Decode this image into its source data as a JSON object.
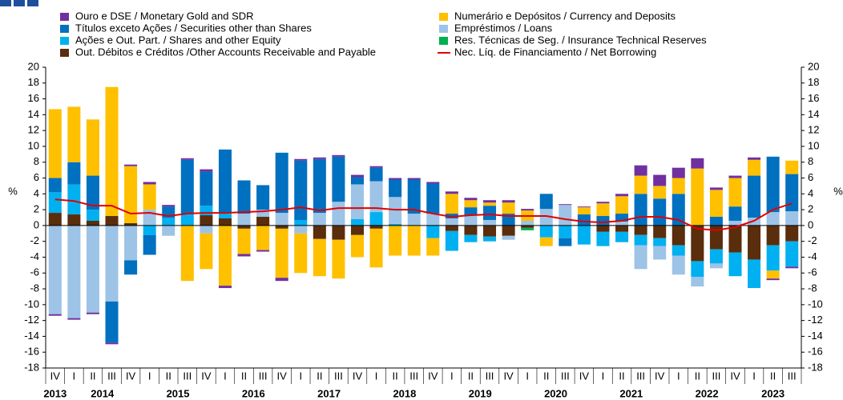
{
  "chart_data": {
    "type": "bar",
    "stacked": true,
    "ylabel": "%",
    "y2label": "%",
    "categories": [
      "IV",
      "I",
      "II",
      "III",
      "IV",
      "I",
      "II",
      "III",
      "IV",
      "I",
      "II",
      "III",
      "IV",
      "I",
      "II",
      "III",
      "IV",
      "I",
      "II",
      "III",
      "IV",
      "I",
      "II",
      "III",
      "IV",
      "I",
      "II",
      "III",
      "IV",
      "I",
      "II",
      "III",
      "IV",
      "I",
      "II",
      "III",
      "IV",
      "I",
      "II",
      "III"
    ],
    "years": [
      "2013",
      "2014",
      "2015",
      "2016",
      "2017",
      "2018",
      "2019",
      "2020",
      "2021",
      "2022",
      "2023"
    ],
    "ylim": [
      -18,
      20
    ],
    "yticks": [
      -18,
      -16,
      -14,
      -12,
      -10,
      -8,
      -6,
      -4,
      -2,
      0,
      2,
      4,
      6,
      8,
      10,
      12,
      14,
      16,
      18,
      20
    ],
    "y2lim": [
      -18,
      20
    ],
    "y2ticks": [
      -18,
      -16,
      -14,
      -12,
      -10,
      -8,
      -6,
      -4,
      -2,
      0,
      2,
      4,
      6,
      8,
      10,
      12,
      14,
      16,
      18,
      20
    ],
    "series": [
      {
        "name": "Ouro e DSE / Monetary Gold and SDR",
        "color": "#7030a0",
        "values": [
          -0.2,
          -0.2,
          -0.2,
          -0.2,
          0.2,
          0.3,
          0.2,
          0.2,
          0.3,
          -0.3,
          -0.3,
          -0.2,
          -0.4,
          0.2,
          0.2,
          0.2,
          0.3,
          0.2,
          0.2,
          0.2,
          0.2,
          0.3,
          0.3,
          0.3,
          0.3,
          0.2,
          0,
          0.1,
          0.1,
          0.2,
          0.3,
          1.3,
          1.4,
          1.3,
          1.3,
          0.3,
          0.3,
          0.3,
          -0.2,
          -0.2
        ]
      },
      {
        "name": "Numerário e Depósitos / Currency and Deposits",
        "color": "#ffc000",
        "values": [
          8.7,
          7,
          7.1,
          16.3,
          7.2,
          3.2,
          0,
          -7,
          -4.5,
          -7.6,
          -3.2,
          -3.1,
          -6.2,
          -5,
          -4.7,
          -4.9,
          -2.8,
          -4.9,
          -3.8,
          -3.8,
          -2.2,
          2.5,
          0.9,
          0.4,
          1.4,
          1.3,
          -1.1,
          0,
          0.9,
          1.6,
          2.2,
          2.3,
          1.6,
          2,
          7.2,
          3.4,
          3.6,
          2,
          -1,
          1.7
        ]
      },
      {
        "name": "Títulos exceto Ações / Securities other than Shares",
        "color": "#0070c0",
        "values": [
          1.8,
          2.8,
          4.3,
          -5.2,
          -1.8,
          -2.5,
          1.4,
          6.8,
          4.3,
          8,
          4.2,
          3.1,
          7.6,
          7.5,
          6.8,
          5.7,
          0.9,
          1.7,
          2.2,
          4.3,
          3.8,
          0.6,
          1,
          1.8,
          1.5,
          0,
          1.9,
          -1,
          1.4,
          1.2,
          1,
          4,
          3.4,
          4,
          0,
          1.1,
          1.8,
          5.3,
          7,
          4.7
        ]
      },
      {
        "name": "Empréstimos / Loans",
        "color": "#9dc3e6",
        "values": [
          -11.2,
          -11.7,
          -11,
          -9.6,
          -4.4,
          2,
          -1.3,
          0,
          -1,
          0,
          1.5,
          0.9,
          1.6,
          -1,
          1.6,
          3,
          4.4,
          3.9,
          3.4,
          1.5,
          1.5,
          0.9,
          1.3,
          0.7,
          -0.5,
          0.6,
          2.1,
          2.6,
          0,
          0,
          0.5,
          -3,
          -1.7,
          -2.4,
          -1.2,
          -0.6,
          0.6,
          1,
          1.7,
          1.8
        ]
      },
      {
        "name": "Ações e Out. Part. / Shares and other Equity",
        "color": "#00b0f0",
        "values": [
          2.6,
          3.8,
          1.4,
          0,
          0,
          -1.2,
          1,
          1.5,
          1.2,
          0.7,
          0,
          0,
          0,
          0.7,
          0,
          0,
          0.8,
          1.7,
          0.2,
          0,
          -1.6,
          -2.5,
          -0.9,
          -0.6,
          0,
          0,
          -1.5,
          -1.6,
          -2.4,
          -1.8,
          -1.3,
          -1.3,
          -1,
          -1.3,
          -2,
          -1.8,
          -3,
          -3.6,
          -3.2,
          -3.2
        ]
      },
      {
        "name": "Res. Técnicas de Seg. / Insurance Technical Reserves",
        "color": "#00b050",
        "values": [
          0,
          0,
          0,
          0,
          0,
          0,
          0,
          0,
          0,
          0,
          0,
          0,
          0,
          0,
          0,
          0,
          0,
          0,
          0,
          0,
          0,
          0,
          0,
          0,
          0,
          -0.3,
          0,
          0,
          0,
          0,
          0,
          0,
          0,
          0,
          0,
          0,
          0,
          0,
          0,
          0
        ]
      },
      {
        "name": "Out. Débitos e Créditos /Other Accounts Receivable and Payable",
        "color": "#5a2d0c",
        "values": [
          1.6,
          1.4,
          0.6,
          1.2,
          0.3,
          0,
          0,
          0,
          1.3,
          0.9,
          -0.4,
          1.1,
          -0.4,
          0,
          -1.7,
          -1.8,
          -1.2,
          -0.4,
          0,
          0,
          0,
          -0.7,
          -1.2,
          -1.4,
          -1.3,
          -0.3,
          0,
          0,
          0,
          -0.8,
          -0.8,
          -1.2,
          -1.6,
          -2.5,
          -4.5,
          -3,
          -3.4,
          -4.3,
          -2.5,
          -2
        ]
      },
      {
        "name": "Nec. Líq. de Financiamento / Net Borrowing",
        "color": "#e00000",
        "kind": "line",
        "values": [
          3.3,
          3.1,
          2.5,
          2.5,
          1.5,
          1.6,
          1.2,
          1.5,
          1.6,
          1.6,
          1.7,
          1.8,
          2,
          2.3,
          1.9,
          2.2,
          2.2,
          2.2,
          2,
          2,
          1.5,
          1.1,
          1.3,
          1.4,
          1.2,
          1.2,
          1.2,
          0.8,
          0.5,
          0.4,
          0.6,
          1.1,
          1.1,
          0.7,
          -0.4,
          -0.6,
          -0.2,
          0.6,
          2,
          2.8
        ]
      }
    ]
  }
}
